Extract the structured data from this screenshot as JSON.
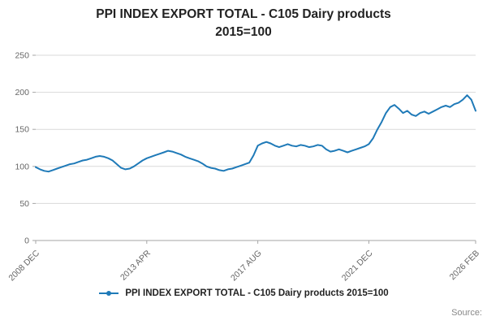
{
  "page": {
    "title_line1": "PPI INDEX EXPORT TOTAL - C105 Dairy products",
    "title_line2": "2015=100",
    "source": "Source:"
  },
  "legend": {
    "label": "PPI INDEX EXPORT TOTAL - C105 Dairy products 2015=100"
  },
  "colors": {
    "line": "#1f7ab8",
    "grid": "#d9d9d9",
    "axis": "#a6a6a6",
    "tick_text": "#666666",
    "title_text": "#222222",
    "source_text": "#888888"
  },
  "chart_data": {
    "type": "line",
    "title": "PPI INDEX EXPORT TOTAL - C105 Dairy products 2015=100",
    "xlabel": "",
    "ylabel": "",
    "x_start": "2008 DEC",
    "x_end": "2026 FEB",
    "interval_months": 2,
    "x_tick_labels": [
      "2008 DEC",
      "2013 APR",
      "2017 AUG",
      "2021 DEC",
      "2026 FEB"
    ],
    "x_tick_indices": [
      0,
      26,
      52,
      78,
      103
    ],
    "y_ticks": [
      0,
      50,
      100,
      150,
      200,
      250
    ],
    "ylim": [
      0,
      250
    ],
    "grid": "horizontal",
    "legend_position": "bottom",
    "series": [
      {
        "name": "PPI INDEX EXPORT TOTAL - C105 Dairy products 2015=100",
        "values": [
          99,
          96,
          94,
          93,
          95,
          97,
          99,
          101,
          103,
          104,
          106,
          108,
          109,
          111,
          113,
          114,
          113,
          111,
          108,
          103,
          98,
          96,
          97,
          100,
          104,
          108,
          111,
          113,
          115,
          117,
          119,
          121,
          120,
          118,
          116,
          113,
          111,
          109,
          107,
          104,
          100,
          98,
          97,
          95,
          94,
          96,
          97,
          99,
          101,
          103,
          105,
          115,
          128,
          131,
          133,
          131,
          128,
          126,
          128,
          130,
          128,
          127,
          129,
          128,
          126,
          127,
          129,
          128,
          123,
          120,
          121,
          123,
          121,
          119,
          121,
          123,
          125,
          127,
          130,
          138,
          150,
          160,
          172,
          180,
          183,
          178,
          172,
          175,
          170,
          168,
          172,
          174,
          171,
          174,
          177,
          180,
          182,
          180,
          184,
          186,
          190,
          196,
          190,
          175
        ]
      }
    ]
  }
}
